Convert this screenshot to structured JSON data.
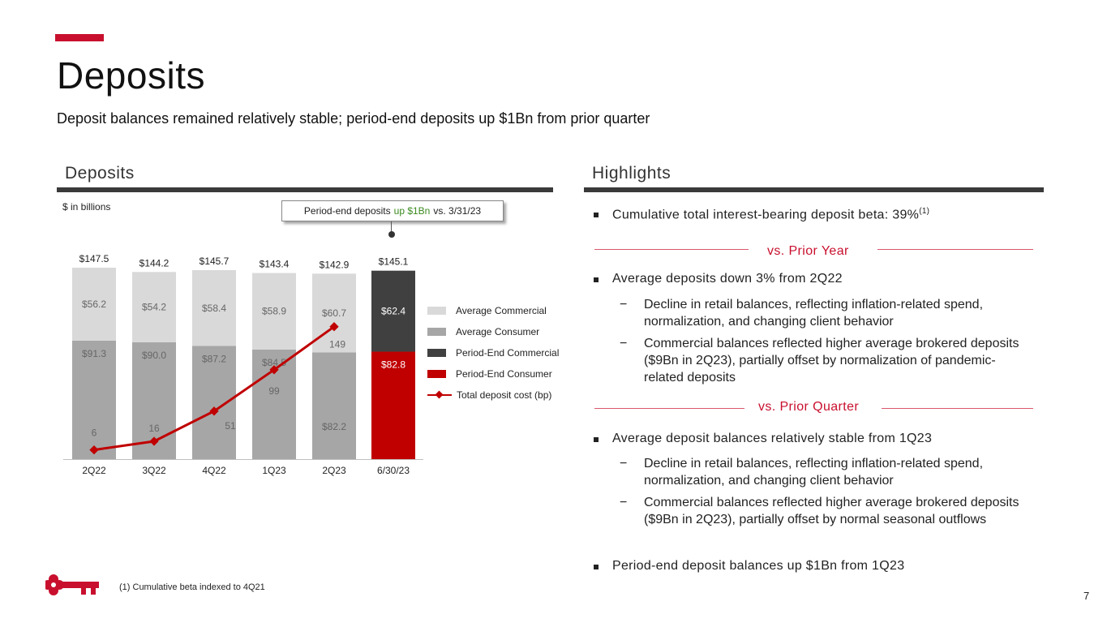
{
  "page": {
    "title": "Deposits",
    "subtitle": "Deposit balances remained relatively stable; period-end deposits up $1Bn from prior quarter",
    "page_number": "7",
    "footnote": "(1) Cumulative beta indexed to 4Q21",
    "brand_color": "#c8102e"
  },
  "left": {
    "heading": "Deposits",
    "units": "$ in billions",
    "callout": {
      "pre": "Period-end deposits",
      "highlight": "up $1Bn",
      "post": "vs. 3/31/23"
    }
  },
  "right": {
    "heading": "Highlights",
    "bullet1": {
      "text": "Cumulative total interest-bearing deposit beta: 39%",
      "sup": "(1)"
    },
    "divider1": "vs. Prior Year",
    "bullet2": "Average deposits down 3% from 2Q22",
    "bullet2_subs": [
      "Decline in retail balances, reflecting inflation-related spend, normalization, and changing client behavior",
      "Commercial balances reflected higher average brokered deposits ($9Bn in 2Q23), partially offset by normalization of pandemic-related deposits"
    ],
    "divider2": "vs. Prior Quarter",
    "bullet3": "Average deposit balances relatively stable from 1Q23",
    "bullet3_subs": [
      "Decline in retail balances, reflecting inflation-related spend, normalization, and changing client behavior",
      "Commercial balances reflected higher average brokered deposits ($9Bn in 2Q23), partially offset by normal seasonal outflows"
    ],
    "bullet4": "Period-end deposit balances up $1Bn from 1Q23"
  },
  "chart_data": {
    "type": "bar",
    "stacked": true,
    "categories": [
      "2Q22",
      "3Q22",
      "4Q22",
      "1Q23",
      "2Q23",
      "6/30/23"
    ],
    "totals": [
      "$147.5",
      "$144.2",
      "$145.7",
      "$143.4",
      "$142.9",
      "$145.1"
    ],
    "series": [
      {
        "name": "Average Consumer",
        "color": "#a6a6a6",
        "values": [
          91.3,
          90.0,
          87.2,
          84.5,
          82.2,
          null
        ],
        "labels": [
          "$91.3",
          "$90.0",
          "$87.2",
          "$84.5",
          "$82.2",
          ""
        ]
      },
      {
        "name": "Average Commercial",
        "color": "#d9d9d9",
        "values": [
          56.2,
          54.2,
          58.4,
          58.9,
          60.7,
          null
        ],
        "labels": [
          "$56.2",
          "$54.2",
          "$58.4",
          "$58.9",
          "$60.7",
          ""
        ]
      },
      {
        "name": "Period-End Consumer",
        "color": "#c00000",
        "values": [
          null,
          null,
          null,
          null,
          null,
          82.8
        ],
        "labels": [
          "",
          "",
          "",
          "",
          "",
          "$82.8"
        ]
      },
      {
        "name": "Period-End Commercial",
        "color": "#404040",
        "values": [
          null,
          null,
          null,
          null,
          null,
          62.4
        ],
        "labels": [
          "",
          "",
          "",
          "",
          "",
          "$62.4"
        ]
      }
    ],
    "line": {
      "name": "Total deposit cost (bp)",
      "color": "#c00000",
      "values": [
        6,
        16,
        51,
        99,
        149
      ],
      "labels": [
        "6",
        "16",
        "51",
        "99",
        "149"
      ]
    },
    "legend": [
      "Average Commercial",
      "Average Consumer",
      "Period-End Commercial",
      "Period-End Consumer",
      "Total deposit cost (bp)"
    ],
    "ylim": [
      0,
      150
    ],
    "line_ylim": [
      0,
      160
    ]
  }
}
